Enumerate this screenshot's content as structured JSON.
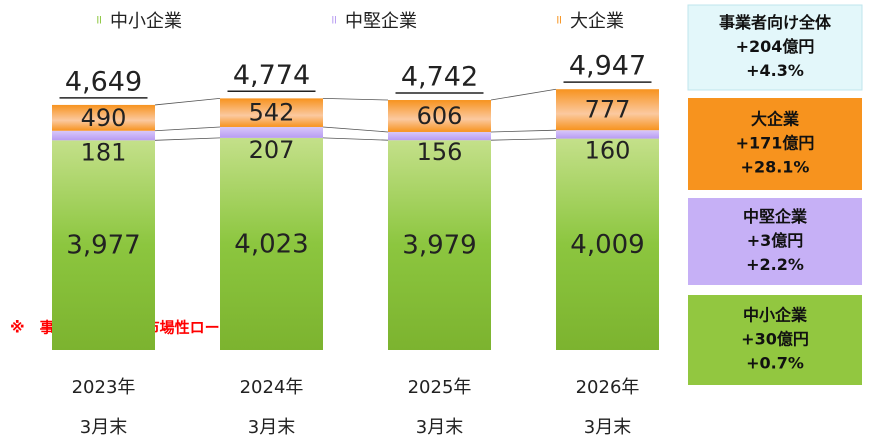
{
  "chart_data": {
    "type": "stacked_bar",
    "categories": [
      [
        "2023年",
        "3月末"
      ],
      [
        "2024年",
        "3月末"
      ],
      [
        "2025年",
        "3月末"
      ],
      [
        "2026年",
        "3月末"
      ]
    ],
    "series": [
      {
        "name": "中小企業",
        "color": "#8cc63f",
        "values": [
          3977,
          4023,
          3979,
          4009
        ],
        "value_labels": [
          "3,977",
          "4,023",
          "3,979",
          "4,009"
        ]
      },
      {
        "name": "中堅企業",
        "color": "#b89cf2",
        "values": [
          181,
          207,
          156,
          160
        ]
      },
      {
        "name": "大企業",
        "color": "#f7931e",
        "values": [
          490,
          542,
          606,
          777
        ]
      }
    ],
    "totals": [
      4649,
      4774,
      4742,
      4947
    ],
    "total_labels": [
      "4,649",
      "4,774",
      "4,742",
      "4,947"
    ],
    "ylim": [
      0,
      5500
    ],
    "note": "※　事業性残高は、市場性ローン除く。",
    "summary": [
      {
        "title": "事業者向け全体",
        "amount": "+204億円",
        "rate": "+4.3%",
        "color": "#e3f7fa"
      },
      {
        "title": "大企業",
        "amount": "+171億円",
        "rate": "+28.1%",
        "color": "#f7931e"
      },
      {
        "title": "中堅企業",
        "amount": "+3億円",
        "rate": "+2.2%",
        "color": "#c6b0f6"
      },
      {
        "title": "中小企業",
        "amount": "+30億円",
        "rate": "+0.7%",
        "color": "#92c740"
      }
    ]
  }
}
